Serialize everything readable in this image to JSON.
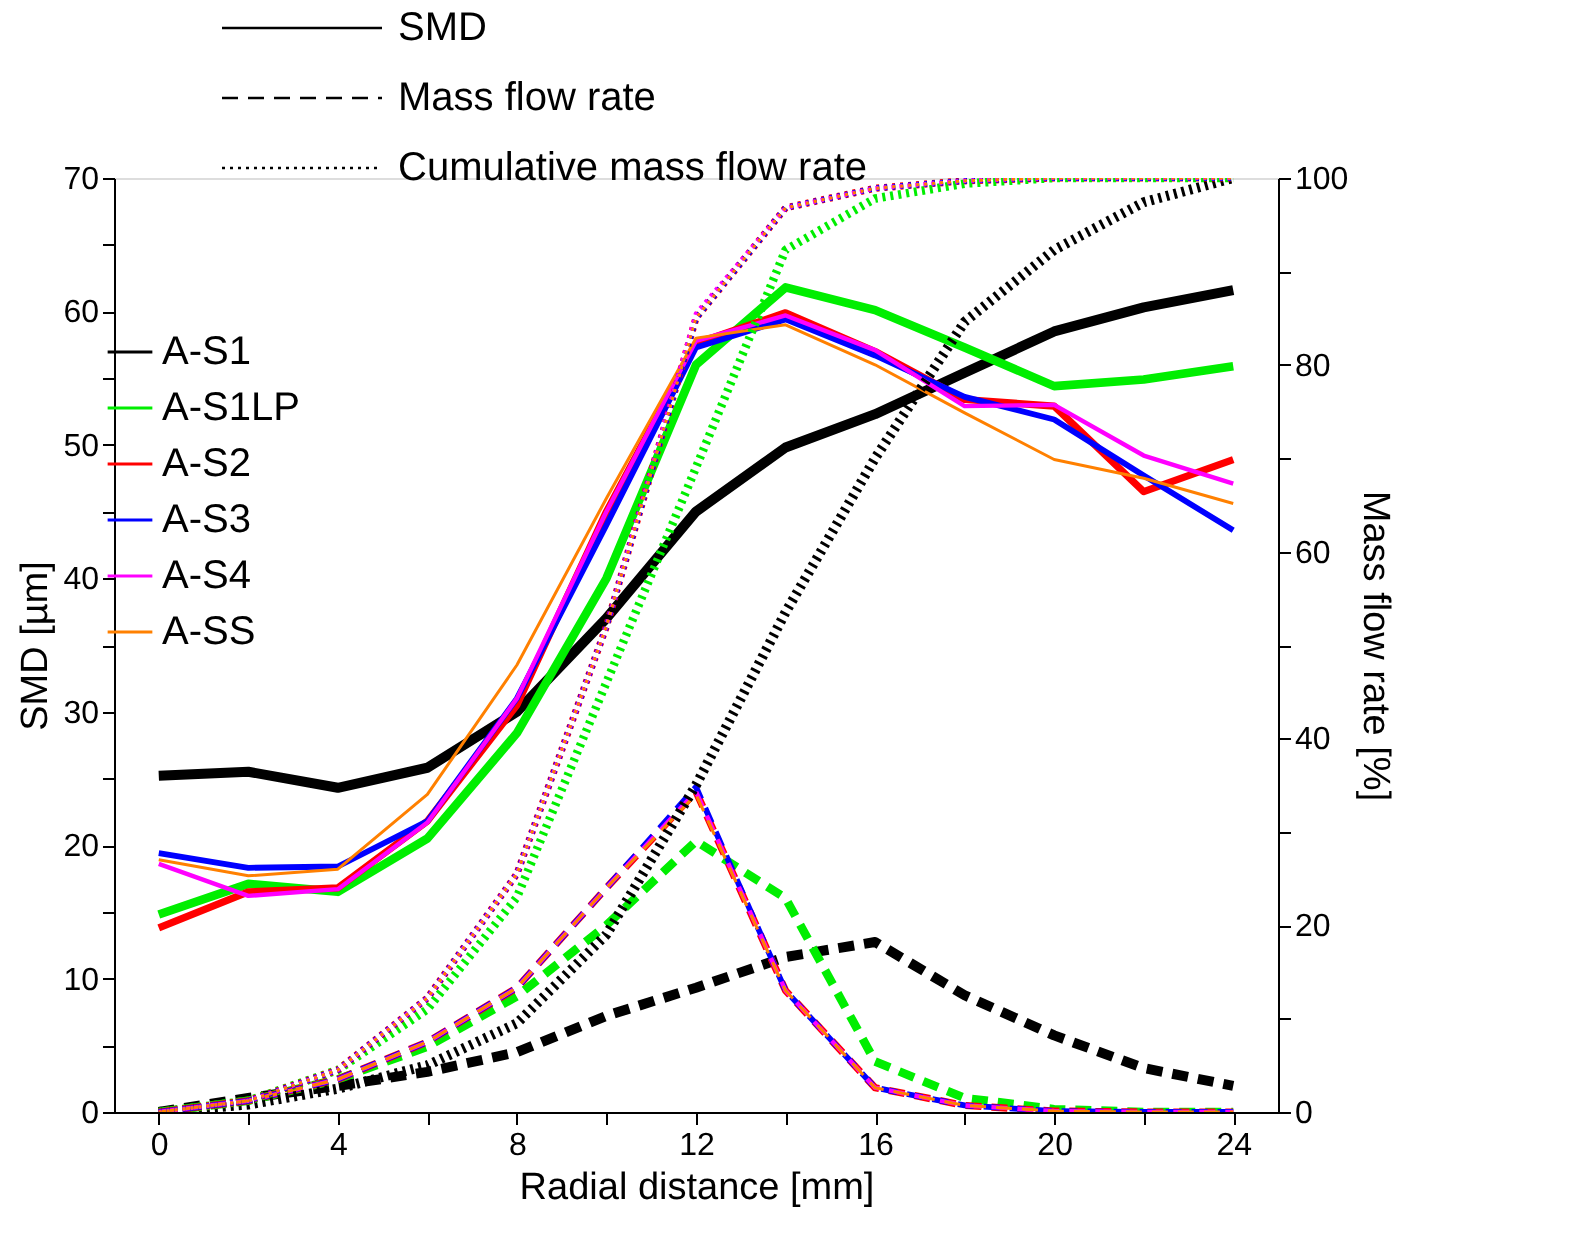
{
  "chart_data": {
    "type": "line",
    "xlabel": "Radial distance [mm]",
    "ylabel": "SMD [µm]",
    "y2label": "Mass flow rate [%]",
    "x": [
      0,
      2,
      4,
      6,
      8,
      10,
      12,
      14,
      16,
      18,
      20,
      22,
      24
    ],
    "xlim": [
      -1,
      25
    ],
    "xticks": [
      0,
      {
        "value": 2,
        "label": null
      },
      4,
      {
        "value": 6,
        "label": null
      },
      8,
      {
        "value": 10,
        "label": null
      },
      12,
      {
        "value": 14,
        "label": null
      },
      16,
      {
        "value": 18,
        "label": null
      },
      20,
      {
        "value": 22,
        "label": null
      },
      24
    ],
    "ylim": [
      0,
      70
    ],
    "yticks": [
      0,
      {
        "value": 5,
        "label": null
      },
      10,
      {
        "value": 15,
        "label": null
      },
      20,
      {
        "value": 25,
        "label": null
      },
      30,
      {
        "value": 35,
        "label": null
      },
      40,
      {
        "value": 45,
        "label": null
      },
      50,
      {
        "value": 55,
        "label": null
      },
      60,
      {
        "value": 65,
        "label": null
      },
      70
    ],
    "y2lim": [
      0,
      100
    ],
    "y2ticks": [
      0,
      {
        "value": 10,
        "label": null
      },
      20,
      {
        "value": 30,
        "label": null
      },
      40,
      {
        "value": 50,
        "label": null
      },
      60,
      {
        "value": 70,
        "label": null
      },
      80,
      {
        "value": 90,
        "label": null
      },
      100
    ],
    "grid": false,
    "legend": "top left",
    "annotations": [
      "SMD",
      "Mass flow rate",
      "Cumulative mass flow rate"
    ],
    "series": [
      {
        "name": "A-S1",
        "color": "#000000",
        "line_style": "solid",
        "values": [
          25.2,
          25.5,
          24.3,
          25.8,
          30,
          37,
          45,
          49.8,
          52.3,
          55.4,
          58.5,
          60.3,
          61.6
        ]
      },
      {
        "name": "A-S1LP",
        "color": "#00ee00",
        "line_style": "solid",
        "values": [
          14.8,
          17.1,
          16.5,
          20.5,
          28.4,
          40,
          56,
          61.8,
          60.1,
          57.3,
          54.4,
          54.9,
          55.9
        ]
      },
      {
        "name": "A-S2",
        "color": "#ff0000",
        "line_style": "solid",
        "values": [
          13.8,
          16.5,
          16.8,
          21.8,
          30.5,
          45,
          57.6,
          59.9,
          57,
          53.4,
          52.9,
          46.5,
          48.9
        ]
      },
      {
        "name": "A-S3",
        "color": "#0000ff",
        "line_style": "solid",
        "values": [
          19.4,
          18.3,
          18.4,
          21.8,
          31,
          44,
          57.3,
          59.4,
          56.7,
          53.6,
          51.9,
          47.7,
          43.6
        ]
      },
      {
        "name": "A-S4",
        "color": "#ff00ff",
        "line_style": "solid",
        "values": [
          18.6,
          16.2,
          16.7,
          21.7,
          31,
          45,
          57.8,
          59.7,
          57.1,
          52.9,
          53,
          49.2,
          47.1
        ]
      },
      {
        "name": "A-SS",
        "color": "#ff8000",
        "line_style": "solid",
        "values": [
          18.9,
          17.7,
          18.2,
          23.8,
          33.5,
          46,
          58,
          59,
          56,
          52.4,
          48.9,
          47.5,
          45.6
        ]
      },
      {
        "color": "#000000",
        "line_style": "dashed",
        "axis": "y2",
        "values": [
          0,
          1.5,
          2.8,
          4.3,
          6.4,
          10.3,
          13.3,
          16.6,
          18.2,
          12.5,
          8.2,
          4.7,
          2.8
        ]
      },
      {
        "color": "#00ee00",
        "line_style": "dashed",
        "axis": "y2",
        "values": [
          0,
          1.2,
          3.5,
          7,
          12.4,
          20,
          29,
          22.9,
          5.4,
          1.5,
          0.3,
          0,
          0
        ]
      },
      {
        "color": "#ff0000",
        "line_style": "dashed",
        "axis": "y2",
        "values": [
          0,
          1.2,
          3.5,
          7.5,
          13.3,
          24,
          34.3,
          13,
          2.6,
          0.7,
          0.1,
          0,
          0
        ]
      },
      {
        "color": "#0000ff",
        "line_style": "dashed",
        "axis": "y2",
        "values": [
          0,
          1.2,
          3.5,
          7.5,
          13.3,
          24,
          34.8,
          13,
          2.6,
          0.7,
          0.1,
          0,
          0
        ]
      },
      {
        "color": "#ff00ff",
        "line_style": "dashed",
        "axis": "y2",
        "values": [
          0,
          1.2,
          3.5,
          7.5,
          13.3,
          24,
          34.3,
          13,
          2.6,
          0.7,
          0.1,
          0,
          0
        ]
      },
      {
        "color": "#ff8000",
        "line_style": "dashed",
        "axis": "y2",
        "values": [
          0,
          1.2,
          3.5,
          7.5,
          13.3,
          24,
          34,
          13,
          2.6,
          0.7,
          0.1,
          0,
          0
        ]
      },
      {
        "color": "#000000",
        "line_style": "dotted",
        "axis": "y2",
        "values": [
          0,
          0.8,
          2.5,
          5,
          9.5,
          19,
          35,
          53.5,
          70,
          84.6,
          92.3,
          97.4,
          100
        ]
      },
      {
        "color": "#00ee00",
        "line_style": "dotted",
        "axis": "y2",
        "values": [
          0,
          1.2,
          4.5,
          11,
          23,
          46,
          69,
          92.3,
          97.8,
          99.4,
          100,
          100,
          100
        ]
      },
      {
        "color": "#ff0000",
        "line_style": "dotted",
        "axis": "y2",
        "values": [
          0,
          1.2,
          4.5,
          12.2,
          25.5,
          52,
          85,
          96.8,
          98.9,
          99.7,
          100,
          100,
          100
        ]
      },
      {
        "color": "#0000ff",
        "line_style": "dotted",
        "axis": "y2",
        "values": [
          0,
          1.2,
          4.5,
          12.2,
          25.5,
          52,
          85,
          96.8,
          98.9,
          99.7,
          100,
          100,
          100
        ]
      },
      {
        "color": "#ff00ff",
        "line_style": "dotted",
        "axis": "y2",
        "values": [
          0,
          1.2,
          4.5,
          12.2,
          25.5,
          52,
          85.5,
          96.8,
          98.9,
          99.7,
          100,
          100,
          100
        ]
      },
      {
        "color": "#ff8000",
        "line_style": "dotted",
        "axis": "y2",
        "values": [
          0,
          1.2,
          4.5,
          12.2,
          25.5,
          52,
          85,
          96.8,
          98.9,
          99.7,
          100,
          100,
          100
        ]
      }
    ]
  }
}
